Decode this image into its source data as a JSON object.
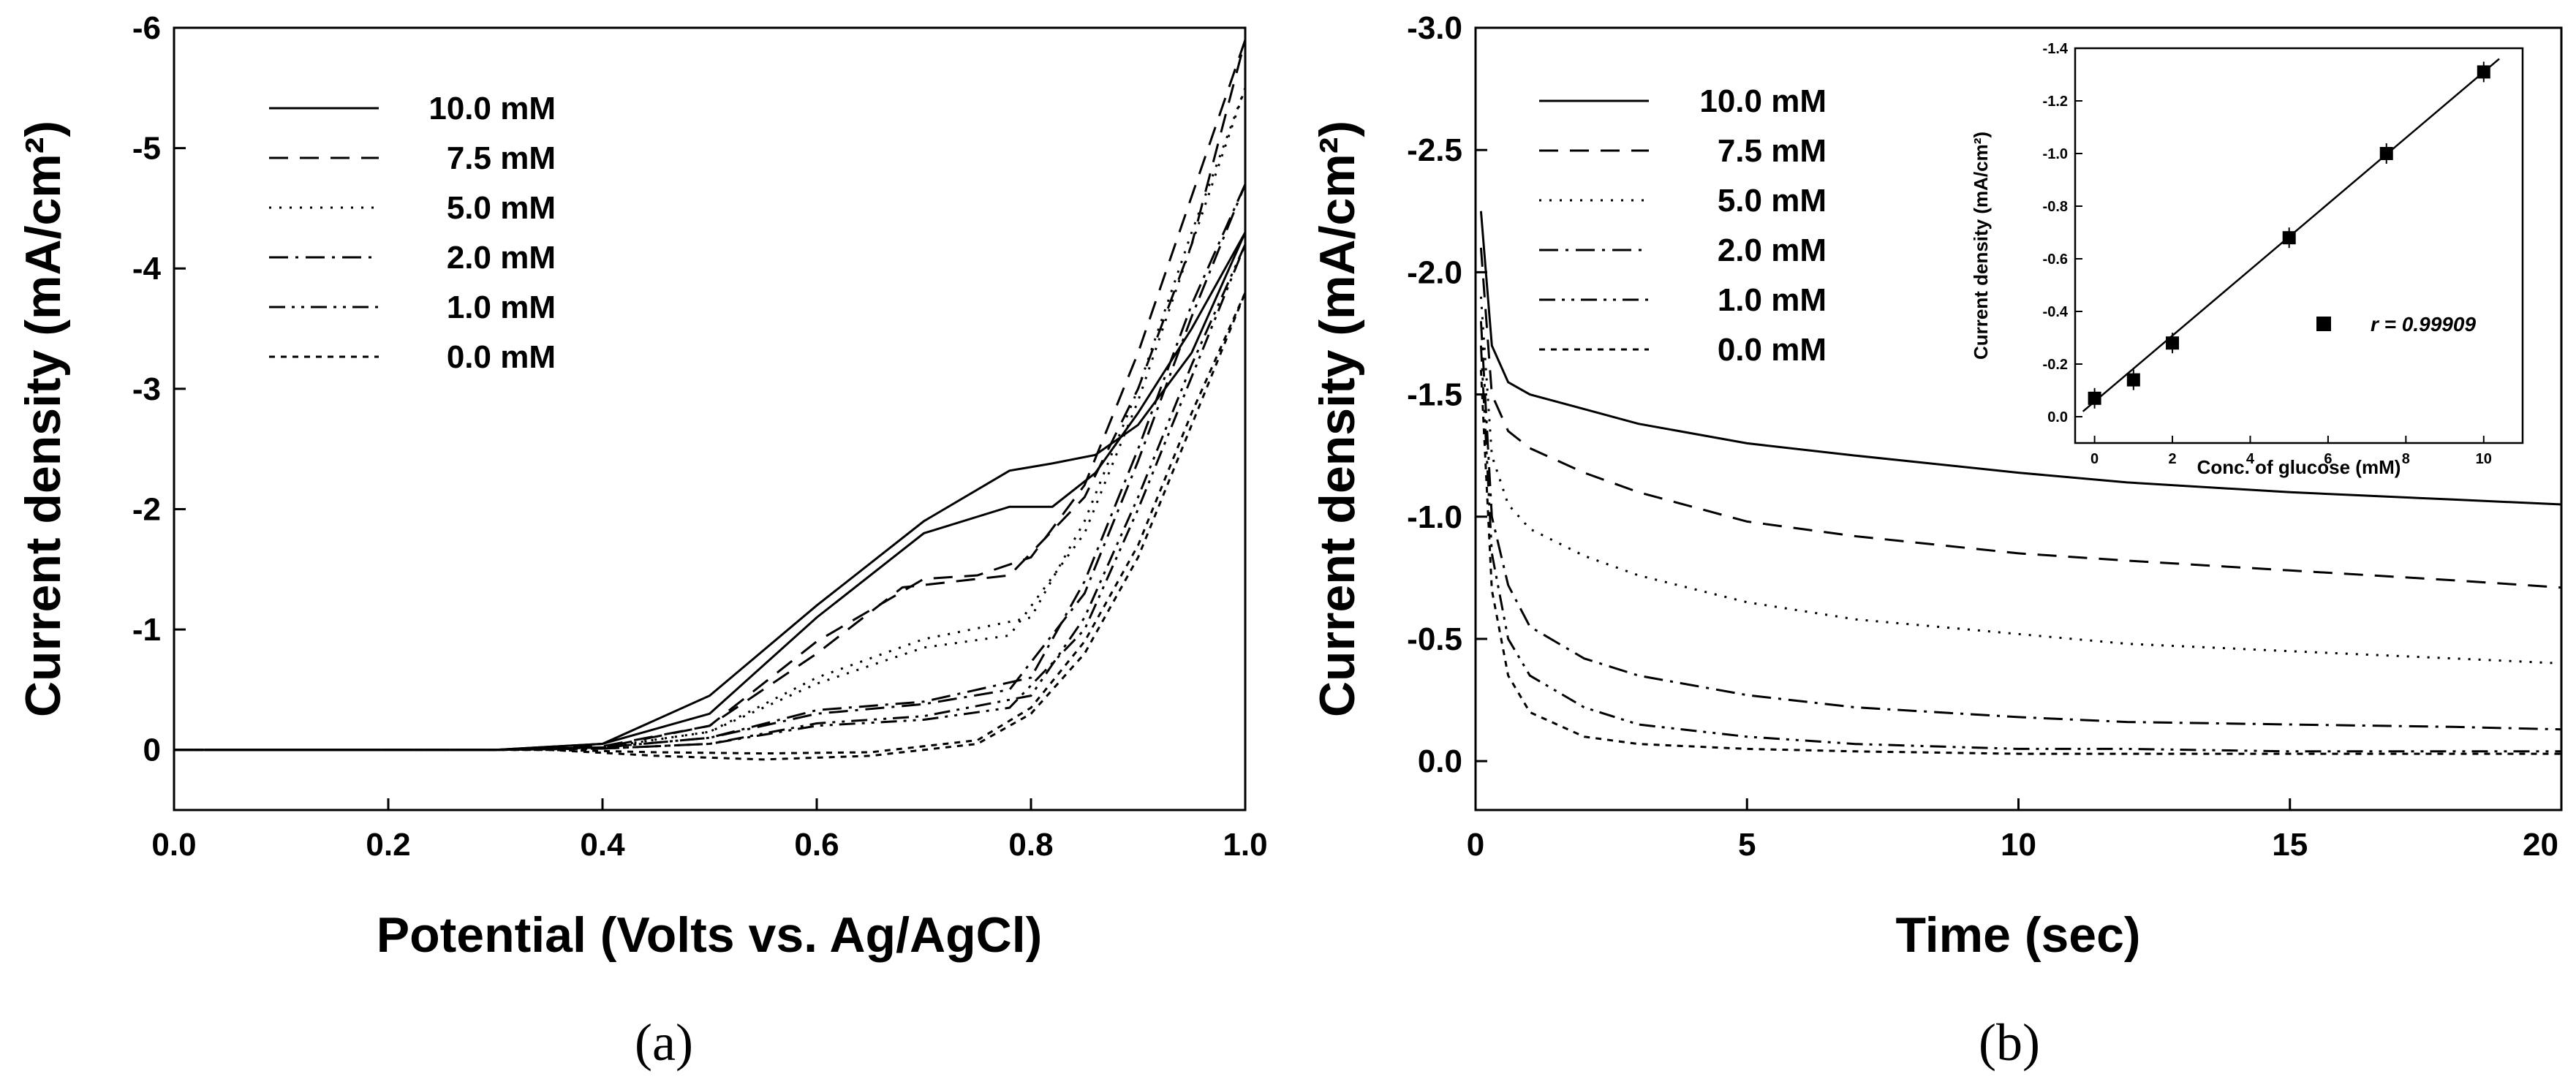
{
  "chart_data": [
    {
      "type": "line",
      "id": "a",
      "caption": "(a)",
      "xlabel": "Potential (Volts vs. Ag/AgCl)",
      "ylabel": "Current density (mA/cm²)",
      "xlim": [
        0.0,
        1.0
      ],
      "ylim": [
        0.5,
        -6
      ],
      "xticks": [
        "0.0",
        "0.2",
        "0.4",
        "0.6",
        "0.8",
        "1.0"
      ],
      "yticks": [
        "0",
        "-1",
        "-2",
        "-3",
        "-4",
        "-5",
        "-6"
      ],
      "legend_position": "top-left",
      "series": [
        {
          "name": "10.0 mM",
          "style": "solid",
          "forward": [
            [
              0,
              0
            ],
            [
              0.3,
              0
            ],
            [
              0.4,
              -0.05
            ],
            [
              0.5,
              -0.3
            ],
            [
              0.6,
              -1.1
            ],
            [
              0.7,
              -1.8
            ],
            [
              0.78,
              -2.02
            ],
            [
              0.82,
              -2.02
            ],
            [
              0.86,
              -2.3
            ],
            [
              0.9,
              -2.8
            ],
            [
              0.95,
              -3.5
            ],
            [
              1.0,
              -4.3
            ]
          ],
          "reverse": [
            [
              1.0,
              -4.3
            ],
            [
              0.95,
              -3.3
            ],
            [
              0.9,
              -2.7
            ],
            [
              0.86,
              -2.45
            ],
            [
              0.82,
              -2.38
            ],
            [
              0.78,
              -2.32
            ],
            [
              0.7,
              -1.9
            ],
            [
              0.6,
              -1.2
            ],
            [
              0.5,
              -0.45
            ],
            [
              0.4,
              -0.05
            ],
            [
              0.3,
              0
            ],
            [
              0,
              0
            ]
          ]
        },
        {
          "name": "7.5 mM",
          "style": "dashed",
          "forward": [
            [
              0,
              0
            ],
            [
              0.3,
              0
            ],
            [
              0.4,
              -0.03
            ],
            [
              0.5,
              -0.2
            ],
            [
              0.6,
              -0.8
            ],
            [
              0.68,
              -1.35
            ],
            [
              0.73,
              -1.4
            ],
            [
              0.78,
              -1.45
            ],
            [
              0.85,
              -2.1
            ],
            [
              0.9,
              -3.0
            ],
            [
              0.95,
              -4.2
            ],
            [
              1.0,
              -5.9
            ]
          ],
          "reverse": [
            [
              1.0,
              -5.9
            ],
            [
              0.95,
              -4.6
            ],
            [
              0.9,
              -3.3
            ],
            [
              0.85,
              -2.2
            ],
            [
              0.8,
              -1.6
            ],
            [
              0.75,
              -1.45
            ],
            [
              0.7,
              -1.42
            ],
            [
              0.6,
              -0.9
            ],
            [
              0.5,
              -0.2
            ],
            [
              0.4,
              -0.02
            ],
            [
              0.3,
              0
            ],
            [
              0,
              0
            ]
          ]
        },
        {
          "name": "5.0 mM",
          "style": "dotted",
          "forward": [
            [
              0,
              0
            ],
            [
              0.3,
              0
            ],
            [
              0.4,
              -0.02
            ],
            [
              0.5,
              -0.15
            ],
            [
              0.6,
              -0.55
            ],
            [
              0.7,
              -0.85
            ],
            [
              0.78,
              -0.95
            ],
            [
              0.85,
              -1.8
            ],
            [
              0.9,
              -2.9
            ],
            [
              0.95,
              -4.2
            ],
            [
              1.0,
              -5.5
            ]
          ],
          "reverse": [
            [
              1.0,
              -5.5
            ],
            [
              0.95,
              -4.3
            ],
            [
              0.9,
              -3.0
            ],
            [
              0.85,
              -1.9
            ],
            [
              0.8,
              -1.1
            ],
            [
              0.7,
              -0.92
            ],
            [
              0.6,
              -0.6
            ],
            [
              0.5,
              -0.15
            ],
            [
              0.4,
              -0.02
            ],
            [
              0.3,
              0
            ],
            [
              0,
              0
            ]
          ]
        },
        {
          "name": "2.0 mM",
          "style": "dashdot",
          "forward": [
            [
              0,
              0
            ],
            [
              0.3,
              0
            ],
            [
              0.4,
              -0.02
            ],
            [
              0.5,
              -0.1
            ],
            [
              0.6,
              -0.3
            ],
            [
              0.7,
              -0.38
            ],
            [
              0.78,
              -0.5
            ],
            [
              0.85,
              -1.3
            ],
            [
              0.9,
              -2.4
            ],
            [
              0.95,
              -3.6
            ],
            [
              1.0,
              -4.7
            ]
          ],
          "reverse": [
            [
              1.0,
              -4.7
            ],
            [
              0.95,
              -3.7
            ],
            [
              0.9,
              -2.5
            ],
            [
              0.85,
              -1.4
            ],
            [
              0.8,
              -0.6
            ],
            [
              0.7,
              -0.4
            ],
            [
              0.6,
              -0.33
            ],
            [
              0.5,
              -0.1
            ],
            [
              0.4,
              -0.02
            ],
            [
              0.3,
              0
            ],
            [
              0,
              0
            ]
          ]
        },
        {
          "name": "1.0 mM",
          "style": "dashdotdot",
          "forward": [
            [
              0,
              0
            ],
            [
              0.3,
              0
            ],
            [
              0.4,
              -0.01
            ],
            [
              0.5,
              -0.05
            ],
            [
              0.6,
              -0.2
            ],
            [
              0.7,
              -0.25
            ],
            [
              0.78,
              -0.35
            ],
            [
              0.85,
              -1.0
            ],
            [
              0.9,
              -2.0
            ],
            [
              0.95,
              -3.1
            ],
            [
              1.0,
              -4.2
            ]
          ],
          "reverse": [
            [
              1.0,
              -4.2
            ],
            [
              0.95,
              -3.2
            ],
            [
              0.9,
              -2.1
            ],
            [
              0.85,
              -1.1
            ],
            [
              0.8,
              -0.45
            ],
            [
              0.7,
              -0.28
            ],
            [
              0.6,
              -0.22
            ],
            [
              0.5,
              -0.05
            ],
            [
              0.4,
              -0.01
            ],
            [
              0.3,
              0
            ],
            [
              0,
              0
            ]
          ]
        },
        {
          "name": "0.0 mM",
          "style": "shortdash",
          "forward": [
            [
              0,
              0
            ],
            [
              0.35,
              0
            ],
            [
              0.45,
              0.05
            ],
            [
              0.55,
              0.08
            ],
            [
              0.65,
              0.05
            ],
            [
              0.75,
              -0.05
            ],
            [
              0.8,
              -0.3
            ],
            [
              0.85,
              -0.8
            ],
            [
              0.9,
              -1.6
            ],
            [
              0.95,
              -2.7
            ],
            [
              1.0,
              -3.8
            ]
          ],
          "reverse": [
            [
              1.0,
              -3.8
            ],
            [
              0.95,
              -2.8
            ],
            [
              0.9,
              -1.7
            ],
            [
              0.85,
              -0.9
            ],
            [
              0.8,
              -0.35
            ],
            [
              0.75,
              -0.08
            ],
            [
              0.65,
              0.02
            ],
            [
              0.55,
              0.03
            ],
            [
              0.45,
              0.02
            ],
            [
              0.35,
              0
            ],
            [
              0,
              0
            ]
          ]
        }
      ]
    },
    {
      "type": "line",
      "id": "b",
      "caption": "(b)",
      "xlabel": "Time (sec)",
      "ylabel": "Current density (mA/cm²)",
      "xlim": [
        0,
        20
      ],
      "ylim": [
        0.2,
        -3.0
      ],
      "xticks": [
        "0",
        "5",
        "10",
        "15",
        "20"
      ],
      "yticks": [
        "0.0",
        "-0.5",
        "-1.0",
        "-1.5",
        "-2.0",
        "-2.5",
        "-3.0"
      ],
      "legend_position": "top-left",
      "series": [
        {
          "name": "10.0 mM",
          "style": "solid",
          "points": [
            [
              0.1,
              -2.25
            ],
            [
              0.3,
              -1.7
            ],
            [
              0.6,
              -1.55
            ],
            [
              1,
              -1.5
            ],
            [
              2,
              -1.44
            ],
            [
              3,
              -1.38
            ],
            [
              5,
              -1.3
            ],
            [
              7,
              -1.25
            ],
            [
              10,
              -1.18
            ],
            [
              12,
              -1.14
            ],
            [
              15,
              -1.1
            ],
            [
              18,
              -1.07
            ],
            [
              20,
              -1.05
            ]
          ]
        },
        {
          "name": "7.5 mM",
          "style": "dashed",
          "points": [
            [
              0.1,
              -2.1
            ],
            [
              0.3,
              -1.5
            ],
            [
              0.6,
              -1.35
            ],
            [
              1,
              -1.28
            ],
            [
              2,
              -1.18
            ],
            [
              3,
              -1.1
            ],
            [
              5,
              -0.98
            ],
            [
              7,
              -0.92
            ],
            [
              10,
              -0.85
            ],
            [
              12,
              -0.82
            ],
            [
              15,
              -0.78
            ],
            [
              18,
              -0.74
            ],
            [
              20,
              -0.71
            ]
          ]
        },
        {
          "name": "5.0 mM",
          "style": "dotted",
          "points": [
            [
              0.1,
              -1.9
            ],
            [
              0.3,
              -1.25
            ],
            [
              0.6,
              -1.05
            ],
            [
              1,
              -0.95
            ],
            [
              2,
              -0.84
            ],
            [
              3,
              -0.76
            ],
            [
              5,
              -0.65
            ],
            [
              7,
              -0.58
            ],
            [
              10,
              -0.52
            ],
            [
              12,
              -0.48
            ],
            [
              15,
              -0.45
            ],
            [
              18,
              -0.42
            ],
            [
              20,
              -0.4
            ]
          ]
        },
        {
          "name": "2.0 mM",
          "style": "dashdot",
          "points": [
            [
              0.1,
              -1.8
            ],
            [
              0.3,
              -1.0
            ],
            [
              0.6,
              -0.72
            ],
            [
              1,
              -0.55
            ],
            [
              2,
              -0.42
            ],
            [
              3,
              -0.35
            ],
            [
              5,
              -0.27
            ],
            [
              7,
              -0.22
            ],
            [
              10,
              -0.18
            ],
            [
              12,
              -0.16
            ],
            [
              15,
              -0.15
            ],
            [
              18,
              -0.14
            ],
            [
              20,
              -0.13
            ]
          ]
        },
        {
          "name": "1.0 mM",
          "style": "dashdotdot",
          "points": [
            [
              0.1,
              -1.7
            ],
            [
              0.3,
              -0.85
            ],
            [
              0.6,
              -0.5
            ],
            [
              1,
              -0.35
            ],
            [
              2,
              -0.22
            ],
            [
              3,
              -0.15
            ],
            [
              5,
              -0.1
            ],
            [
              7,
              -0.07
            ],
            [
              10,
              -0.05
            ],
            [
              12,
              -0.05
            ],
            [
              15,
              -0.04
            ],
            [
              18,
              -0.04
            ],
            [
              20,
              -0.04
            ]
          ]
        },
        {
          "name": "0.0 mM",
          "style": "shortdash",
          "points": [
            [
              0.1,
              -1.6
            ],
            [
              0.3,
              -0.7
            ],
            [
              0.6,
              -0.35
            ],
            [
              1,
              -0.2
            ],
            [
              2,
              -0.1
            ],
            [
              3,
              -0.07
            ],
            [
              5,
              -0.05
            ],
            [
              7,
              -0.04
            ],
            [
              10,
              -0.03
            ],
            [
              12,
              -0.03
            ],
            [
              15,
              -0.03
            ],
            [
              18,
              -0.03
            ],
            [
              20,
              -0.03
            ]
          ]
        }
      ]
    },
    {
      "type": "scatter",
      "id": "b-inset",
      "xlabel": "Conc. of glucose (mM)",
      "ylabel": "Current density (mA/cm²)",
      "xlim": [
        -0.5,
        11
      ],
      "ylim": [
        0.1,
        -1.4
      ],
      "xticks": [
        "0",
        "2",
        "4",
        "6",
        "8",
        "10"
      ],
      "yticks": [
        "0.0",
        "-0.2",
        "-0.4",
        "-0.6",
        "-0.8",
        "-1.0",
        "-1.2",
        "-1.4"
      ],
      "x": [
        0,
        1,
        2,
        5,
        7.5,
        10
      ],
      "y": [
        -0.07,
        -0.14,
        -0.28,
        -0.68,
        -1.0,
        -1.31
      ],
      "fit": {
        "x": [
          -0.3,
          10.4
        ],
        "y": [
          -0.02,
          -1.36
        ]
      },
      "annotation": "r = 0.99909",
      "legend_position": "lower-right"
    }
  ]
}
